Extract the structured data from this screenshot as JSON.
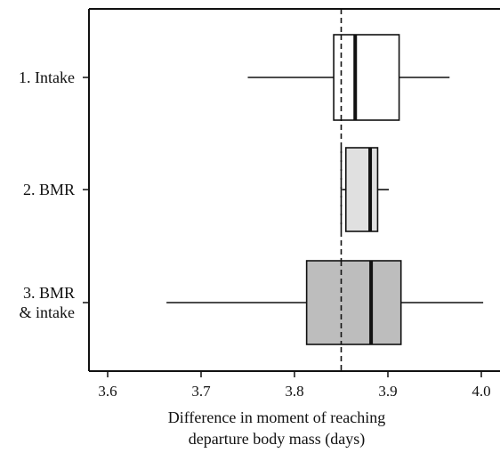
{
  "chart_data": {
    "type": "boxplot",
    "orientation": "horizontal",
    "xlabel": [
      "Difference in moment of reaching",
      "departure body mass (days)"
    ],
    "xlim": [
      3.58,
      4.02
    ],
    "xticks": [
      3.6,
      3.7,
      3.8,
      3.9,
      4.0
    ],
    "xtick_labels": [
      "3.6",
      "3.7",
      "3.8",
      "3.9",
      "4.0"
    ],
    "reference_line": {
      "x": 3.85,
      "style": "dashed"
    },
    "categories": [
      {
        "label_lines": [
          "1. Intake"
        ],
        "whisker_low": 3.75,
        "q1": 3.842,
        "median": 3.865,
        "q3": 3.912,
        "whisker_high": 3.966,
        "fill": "#ffffff"
      },
      {
        "label_lines": [
          "2. BMR"
        ],
        "whisker_low": 3.851,
        "q1": 3.855,
        "median": 3.881,
        "q3": 3.889,
        "whisker_high": 3.901,
        "fill": "#e0e0e0"
      },
      {
        "label_lines": [
          "3. BMR",
          "& intake"
        ],
        "whisker_low": 3.663,
        "q1": 3.813,
        "median": 3.882,
        "q3": 3.914,
        "whisker_high": 4.002,
        "fill": "#bdbdbd"
      }
    ],
    "grid": false
  }
}
